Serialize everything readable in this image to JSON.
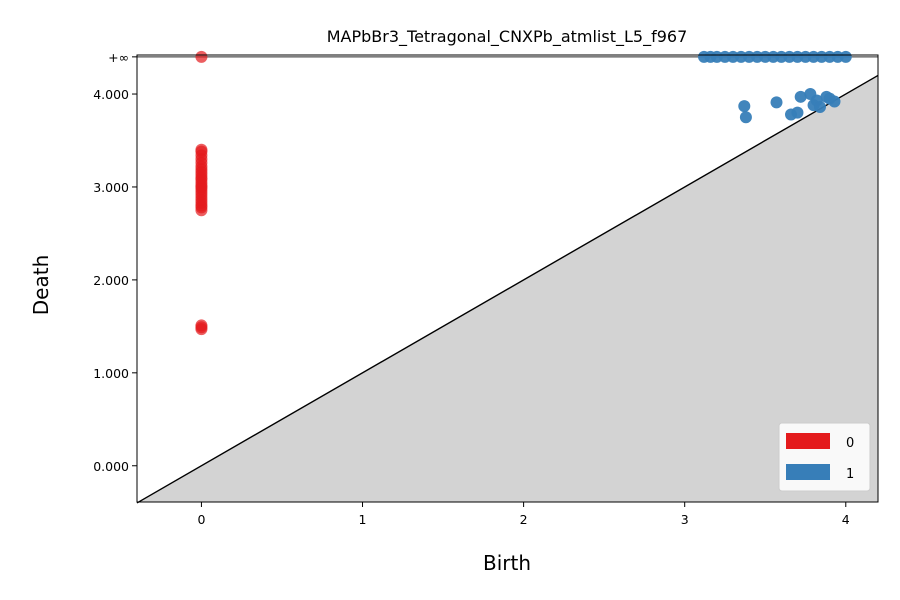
{
  "chart_data": {
    "type": "scatter",
    "title": "MAPbBr3_Tetragonal_CNXPb_atmlist_L5_f967",
    "xlabel": "Birth",
    "ylabel": "Death",
    "xlim": [
      -0.4,
      4.2
    ],
    "ylim": [
      -0.39,
      4.42
    ],
    "x_ticks": [
      0,
      1,
      2,
      3,
      4
    ],
    "x_tick_labels": [
      "0",
      "1",
      "2",
      "3",
      "4"
    ],
    "y_ticks": [
      0,
      1,
      2,
      3,
      4
    ],
    "y_tick_labels": [
      "0.000",
      "1.000",
      "2.000",
      "3.000",
      "4.000"
    ],
    "infinity_label": "+∞",
    "infinity_level": 4.4,
    "grid": false,
    "legend_position": "lower-right",
    "colors": {
      "h0": "#e41a1c",
      "h1": "#377eb8",
      "diagonal_fill": "#d3d3d3",
      "infinity_line": "#555555"
    },
    "series": [
      {
        "name": "0",
        "color": "#e41a1c",
        "x": [
          0,
          0,
          0,
          0,
          0,
          0,
          0,
          0,
          0,
          0,
          0,
          0,
          0,
          0,
          0,
          0,
          0,
          0,
          0,
          0,
          0,
          0,
          0,
          0,
          0,
          0
        ],
        "y": [
          1.47,
          1.49,
          1.51,
          2.75,
          2.78,
          2.8,
          2.83,
          2.86,
          2.89,
          2.92,
          2.95,
          2.98,
          3.0,
          3.02,
          3.05,
          3.08,
          3.1,
          3.13,
          3.16,
          3.19,
          3.22,
          3.26,
          3.3,
          3.34,
          3.38,
          3.4
        ],
        "infinite_x": [
          0
        ]
      },
      {
        "name": "1",
        "color": "#377eb8",
        "x": [
          3.37,
          3.38,
          3.57,
          3.66,
          3.7,
          3.72,
          3.78,
          3.8,
          3.82,
          3.84,
          3.88,
          3.9,
          3.93
        ],
        "y": [
          3.87,
          3.75,
          3.91,
          3.78,
          3.8,
          3.97,
          4.0,
          3.88,
          3.93,
          3.86,
          3.97,
          3.95,
          3.92
        ],
        "infinite_x": [
          3.12,
          3.16,
          3.2,
          3.25,
          3.3,
          3.35,
          3.4,
          3.45,
          3.5,
          3.55,
          3.6,
          3.65,
          3.7,
          3.75,
          3.8,
          3.85,
          3.9,
          3.95,
          4.0
        ]
      }
    ]
  }
}
